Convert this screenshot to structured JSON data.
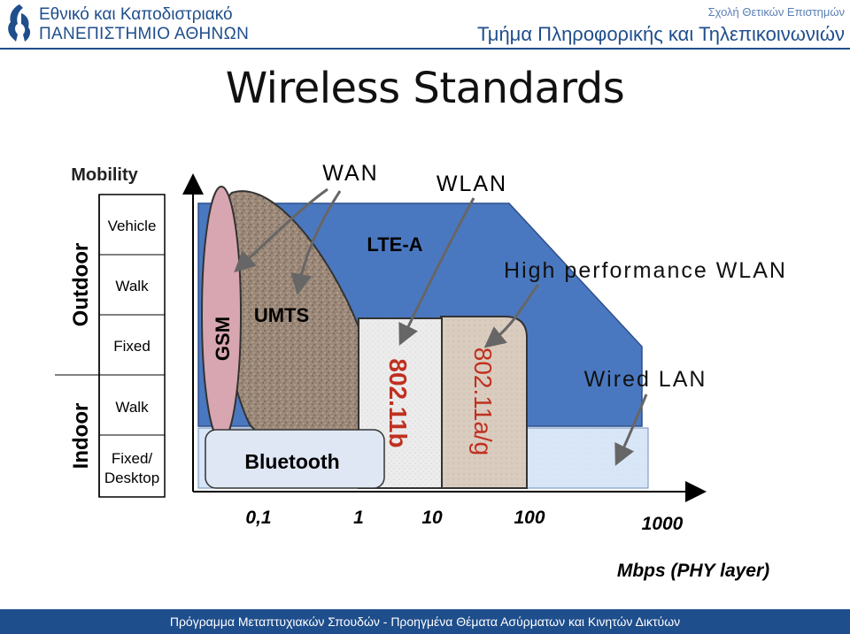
{
  "header": {
    "university_line1": "Εθνικό και Καποδιστριακό",
    "university_line2": "ΠΑΝΕΠΙΣΤΗΜΙΟ ΑΘΗΝΩΝ",
    "school": "Σχολή Θετικών Επιστημών",
    "department": "Τμήμα Πληροφορικής και Τηλεπικοινωνιών"
  },
  "title": "Wireless Standards",
  "mobility": {
    "heading": "Mobility",
    "groups": [
      "Outdoor",
      "Indoor"
    ],
    "levels": [
      "Vehicle",
      "Walk",
      "Fixed",
      "Walk",
      "Fixed/",
      "Desktop"
    ]
  },
  "callouts": {
    "wan": "WAN",
    "wlan": "WLAN"
  },
  "technologies": {
    "gsm": "GSM",
    "umts": "UMTS",
    "lte": "LTE-A",
    "bluetooth": "Bluetooth",
    "b80211b": "802.11b",
    "b80211ag": "802.11a/g",
    "hp_wlan": "High performance WLAN",
    "wired_lan": "Wired LAN"
  },
  "axis": {
    "ticks": [
      "0,1",
      "1",
      "10",
      "100",
      "1000"
    ],
    "label": "Mbps (PHY layer)"
  },
  "colors": {
    "brand": "#1f4e8c",
    "wan_area": "#4a78c0",
    "wired_lan": "#d8e6f7",
    "wlan_b": "#ececec",
    "wlan_ag": "#d9ccbf",
    "gsm": "#d8a6b0",
    "umts": "#9b8878"
  },
  "footer": "Πρόγραμμα Μεταπτυχιακών Σπουδών - Προηγμένα Θέματα Ασύρματων και Κινητών Δικτύων"
}
